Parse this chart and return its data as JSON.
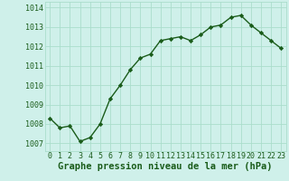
{
  "x": [
    0,
    1,
    2,
    3,
    4,
    5,
    6,
    7,
    8,
    9,
    10,
    11,
    12,
    13,
    14,
    15,
    16,
    17,
    18,
    19,
    20,
    21,
    22,
    23
  ],
  "y": [
    1008.3,
    1007.8,
    1007.9,
    1007.1,
    1007.3,
    1008.0,
    1009.3,
    1010.0,
    1010.8,
    1011.4,
    1011.6,
    1012.3,
    1012.4,
    1012.5,
    1012.3,
    1012.6,
    1013.0,
    1013.1,
    1013.5,
    1013.6,
    1013.1,
    1012.7,
    1012.3,
    1011.9
  ],
  "line_color": "#1a5c1a",
  "marker": "D",
  "marker_size": 2.2,
  "line_width": 1.0,
  "bg_color": "#cff0ea",
  "grid_color": "#aaddcc",
  "xlabel": "Graphe pression niveau de la mer (hPa)",
  "xlabel_fontsize": 7.5,
  "xlabel_color": "#1a5c1a",
  "ytick_labels": [
    "1007",
    "1008",
    "1009",
    "1010",
    "1011",
    "1012",
    "1013",
    "1014"
  ],
  "ytick_values": [
    1007,
    1008,
    1009,
    1010,
    1011,
    1012,
    1013,
    1014
  ],
  "ylim": [
    1006.6,
    1014.3
  ],
  "xlim": [
    -0.5,
    23.5
  ],
  "tick_color": "#1a5c1a",
  "tick_fontsize": 6.0,
  "xtick_labels": [
    "0",
    "1",
    "2",
    "3",
    "4",
    "5",
    "6",
    "7",
    "8",
    "9",
    "10",
    "11",
    "12",
    "13",
    "14",
    "15",
    "16",
    "17",
    "18",
    "19",
    "20",
    "21",
    "22",
    "23"
  ]
}
